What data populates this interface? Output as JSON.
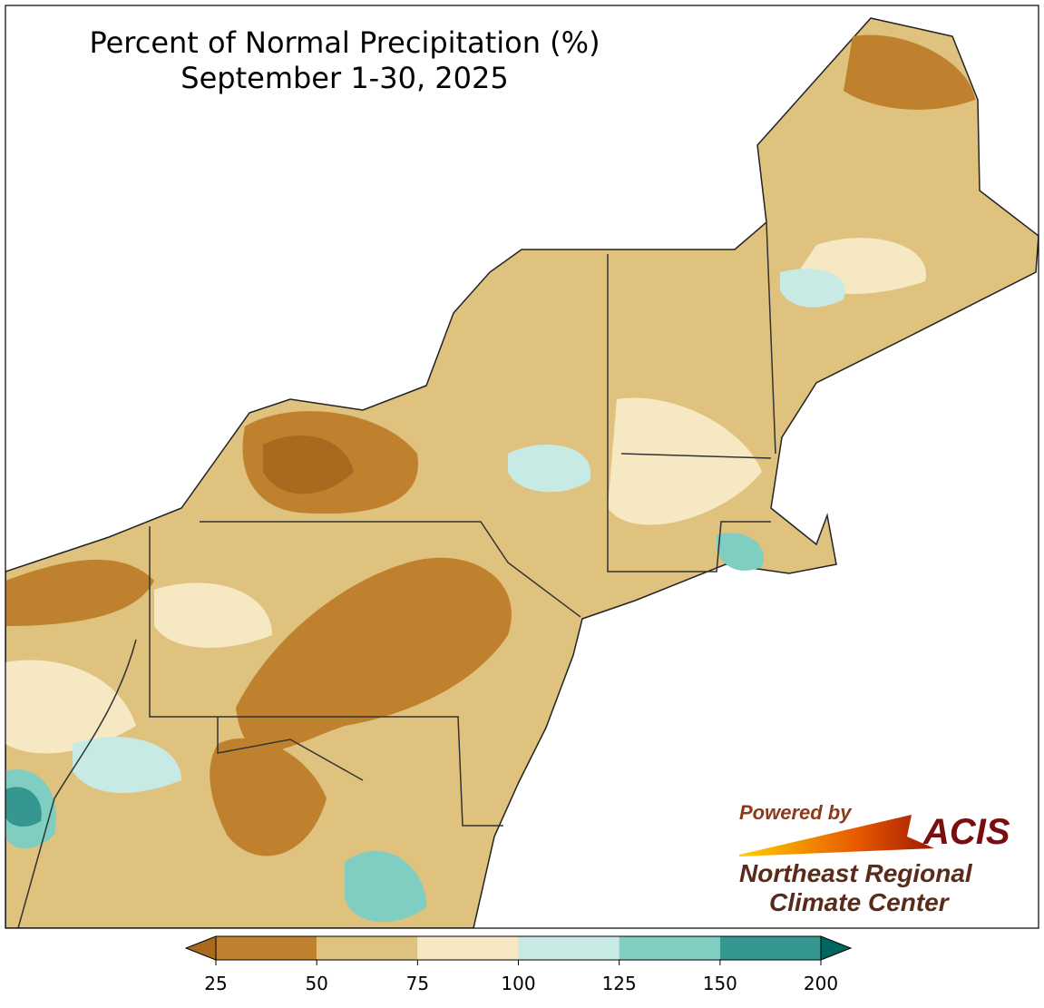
{
  "title": "Percent of Normal Precipitation (%)",
  "subtitle": "September 1-30, 2025",
  "legend": {
    "ticks": [
      25,
      50,
      75,
      100,
      125,
      150,
      200
    ],
    "colors": [
      "#bf812d",
      "#dfc27d",
      "#f6e8c3",
      "#c7eae5",
      "#80cdc1",
      "#35978f"
    ],
    "under_color": "#a96a1f",
    "over_color": "#01665e"
  },
  "logo": {
    "powered_by": "Powered by",
    "name": "ACIS",
    "org_line1": "Northeast Regional",
    "org_line2": "Climate Center"
  }
}
